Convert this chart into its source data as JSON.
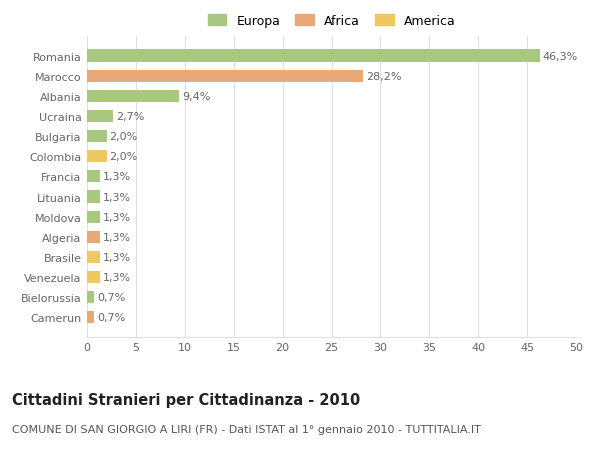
{
  "categories": [
    "Romania",
    "Marocco",
    "Albania",
    "Ucraina",
    "Bulgaria",
    "Colombia",
    "Francia",
    "Lituania",
    "Moldova",
    "Algeria",
    "Brasile",
    "Venezuela",
    "Bielorussia",
    "Camerun"
  ],
  "values": [
    46.3,
    28.2,
    9.4,
    2.7,
    2.0,
    2.0,
    1.3,
    1.3,
    1.3,
    1.3,
    1.3,
    1.3,
    0.7,
    0.7
  ],
  "labels": [
    "46,3%",
    "28,2%",
    "9,4%",
    "2,7%",
    "2,0%",
    "2,0%",
    "1,3%",
    "1,3%",
    "1,3%",
    "1,3%",
    "1,3%",
    "1,3%",
    "0,7%",
    "0,7%"
  ],
  "continents": [
    "Europa",
    "Africa",
    "Europa",
    "Europa",
    "Europa",
    "America",
    "Europa",
    "Europa",
    "Europa",
    "Africa",
    "America",
    "America",
    "Europa",
    "Africa"
  ],
  "colors": {
    "Europa": "#a8c880",
    "Africa": "#e8a878",
    "America": "#f0c860"
  },
  "legend_order": [
    "Europa",
    "Africa",
    "America"
  ],
  "title": "Cittadini Stranieri per Cittadinanza - 2010",
  "subtitle": "COMUNE DI SAN GIORGIO A LIRI (FR) - Dati ISTAT al 1° gennaio 2010 - TUTTITALIA.IT",
  "xlim": [
    0,
    50
  ],
  "xticks": [
    0,
    5,
    10,
    15,
    20,
    25,
    30,
    35,
    40,
    45,
    50
  ],
  "background_color": "#ffffff",
  "grid_color": "#e0e0e0",
  "label_fontsize": 8.0,
  "title_fontsize": 10.5,
  "subtitle_fontsize": 8.0
}
